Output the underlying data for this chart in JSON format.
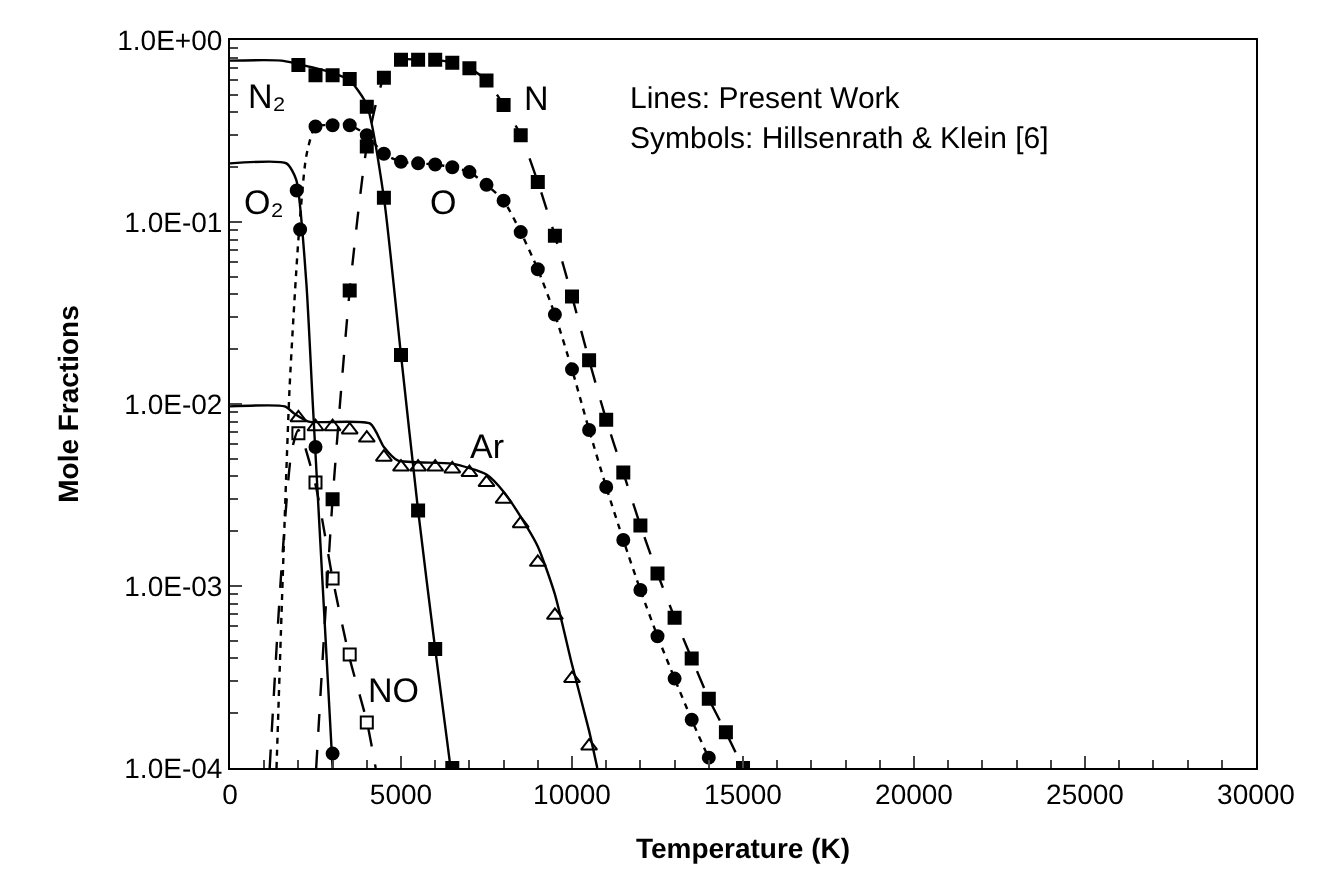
{
  "chart_data": {
    "type": "scatter",
    "xlabel": "Temperature (K)",
    "ylabel": "Mole Fractions",
    "log": "y",
    "xlim": [
      0,
      30000
    ],
    "xticks": [
      0,
      5000,
      10000,
      15000,
      20000,
      25000,
      30000
    ],
    "ylim": [
      0.0001,
      1
    ],
    "yticks": [
      {
        "value": 0.0001,
        "label": "1.0E-04"
      },
      {
        "value": 0.001,
        "label": "1.0E-03"
      },
      {
        "value": 0.01,
        "label": "1.0E-02"
      },
      {
        "value": 0.1,
        "label": "1.0E-01"
      },
      {
        "value": 1,
        "label": "1.0E+00"
      }
    ],
    "series": [
      {
        "type": "line",
        "color": "#000000",
        "marker": "none",
        "line_style": "solid",
        "x": [
          0,
          1500,
          2500,
          3000,
          3500,
          4000,
          4500,
          5000,
          5500,
          6000,
          6450
        ],
        "values": [
          0.77,
          0.77,
          0.7,
          0.66,
          0.6,
          0.44,
          0.136,
          0.0186,
          0.0026,
          0.00045,
          0.0001
        ]
      },
      {
        "type": "line",
        "color": "#000000",
        "marker": "none",
        "line_style": "solid",
        "x": [
          0,
          1650,
          1940,
          2230,
          2420,
          3000
        ],
        "values": [
          0.21,
          0.21,
          0.17,
          0.047,
          0.0101,
          0.0001
        ]
      },
      {
        "type": "line",
        "color": "#000000",
        "marker": "none",
        "line_style": "dashed",
        "x": [
          2520,
          3000,
          3500,
          4000,
          4500,
          5000,
          5500,
          6000,
          6500,
          7000,
          7500,
          8000,
          8500,
          9000,
          9500,
          10000,
          10500,
          11000,
          11500,
          12000,
          12500,
          13000,
          13500,
          14000,
          14500,
          15000
        ],
        "values": [
          0.0001,
          0.003,
          0.042,
          0.26,
          0.62,
          0.78,
          0.78,
          0.78,
          0.75,
          0.7,
          0.6,
          0.44,
          0.3,
          0.166,
          0.084,
          0.039,
          0.0174,
          0.0082,
          0.0042,
          0.00215,
          0.00117,
          0.00067,
          0.0004,
          0.00024,
          0.000157,
          0.0001
        ]
      },
      {
        "type": "line",
        "color": "#000000",
        "marker": "none",
        "line_style": "dotted",
        "x": [
          1360,
          1740,
          2000,
          2230,
          2500,
          3000,
          3500,
          4000,
          4500,
          5000,
          5500,
          6000,
          6500,
          7000,
          7500,
          8000,
          8500,
          9000,
          9500,
          10000,
          10500,
          11000,
          11500,
          12000,
          12500,
          13000,
          13500,
          14000,
          14200
        ],
        "values": [
          0.0001,
          0.012,
          0.08,
          0.23,
          0.335,
          0.34,
          0.34,
          0.3,
          0.237,
          0.214,
          0.21,
          0.207,
          0.2,
          0.188,
          0.16,
          0.131,
          0.088,
          0.055,
          0.031,
          0.0155,
          0.0072,
          0.0035,
          0.00179,
          0.00095,
          0.00053,
          0.00031,
          0.000184,
          0.000114,
          0.0001
        ]
      },
      {
        "type": "line",
        "color": "#000000",
        "marker": "none",
        "line_style": "solid",
        "x": [
          0,
          1600,
          1900,
          2300,
          4100,
          4500,
          4900,
          6500,
          7500,
          8000,
          8500,
          9000,
          9500,
          10000,
          10500,
          10740
        ],
        "values": [
          0.0097,
          0.0097,
          0.0088,
          0.008,
          0.0078,
          0.0058,
          0.0049,
          0.0047,
          0.0041,
          0.0033,
          0.0024,
          0.00165,
          0.0009,
          0.00037,
          0.00016,
          0.0001
        ]
      },
      {
        "type": "line",
        "color": "#000000",
        "marker": "none",
        "line_style": "dashed",
        "x": [
          1160,
          1500,
          1800,
          2000,
          2500,
          3000,
          3500,
          4000,
          4260
        ],
        "values": [
          0.0001,
          0.0012,
          0.0055,
          0.0072,
          0.0036,
          0.0011,
          0.0004,
          0.00018,
          0.0001
        ]
      },
      {
        "color": "#000000",
        "marker": "square",
        "x": [
          2000,
          2500,
          3000,
          3500,
          4000,
          4500,
          5000,
          5500,
          6000,
          6500
        ],
        "values": [
          0.73,
          0.64,
          0.64,
          0.61,
          0.43,
          0.136,
          0.0186,
          0.0026,
          0.00045,
          0.0001
        ]
      },
      {
        "color": "#000000",
        "marker": "circle",
        "x": [
          1950,
          2050,
          2500,
          3000
        ],
        "values": [
          0.149,
          0.091,
          0.0058,
          0.00012
        ]
      },
      {
        "color": "#000000",
        "marker": "square",
        "x": [
          3000,
          3500,
          4000,
          4500,
          5000,
          5500,
          6000,
          6500,
          7000,
          7500,
          8000,
          8500,
          9000,
          9500,
          10000,
          10500,
          11000,
          11500,
          12000,
          12500,
          13000,
          13500,
          14000,
          14500,
          15000
        ],
        "values": [
          0.003,
          0.042,
          0.26,
          0.62,
          0.78,
          0.78,
          0.78,
          0.75,
          0.7,
          0.6,
          0.44,
          0.3,
          0.166,
          0.084,
          0.039,
          0.0174,
          0.0082,
          0.0042,
          0.00215,
          0.00117,
          0.00067,
          0.0004,
          0.00024,
          0.000157,
          0.0001
        ]
      },
      {
        "color": "#000000",
        "marker": "circle",
        "x": [
          2500,
          3000,
          3500,
          4000,
          4500,
          5000,
          5500,
          6000,
          6500,
          7000,
          7500,
          8000,
          8500,
          9000,
          9500,
          10000,
          10500,
          11000,
          11500,
          12000,
          12500,
          13000,
          13500,
          14000
        ],
        "values": [
          0.335,
          0.34,
          0.34,
          0.3,
          0.237,
          0.214,
          0.21,
          0.207,
          0.2,
          0.188,
          0.16,
          0.131,
          0.088,
          0.055,
          0.031,
          0.0155,
          0.0072,
          0.0035,
          0.00179,
          0.00095,
          0.00053,
          0.00031,
          0.000184,
          0.000114
        ]
      },
      {
        "color": "#000000",
        "marker": "triangle-open",
        "x": [
          2000,
          2500,
          3000,
          3500,
          4000,
          4500,
          5000,
          5500,
          6000,
          6500,
          7000,
          7500,
          8000,
          8500,
          9000,
          9500,
          10000,
          10500
        ],
        "values": [
          0.0084,
          0.0075,
          0.0075,
          0.0072,
          0.0065,
          0.0051,
          0.0045,
          0.0045,
          0.0045,
          0.0044,
          0.0042,
          0.0037,
          0.003,
          0.0022,
          0.00135,
          0.00069,
          0.00031,
          0.000132
        ]
      },
      {
        "color": "#000000",
        "marker": "square-open",
        "x": [
          2000,
          2500,
          3000,
          3500,
          4000
        ],
        "values": [
          0.0069,
          0.0037,
          0.0011,
          0.00042,
          0.000178
        ]
      }
    ],
    "annotations": [
      "N₂",
      "O₂",
      "N",
      "O",
      "Ar",
      "NO",
      "Lines: Present Work",
      "Symbols: Hillsenrath & Klein [6]"
    ]
  }
}
